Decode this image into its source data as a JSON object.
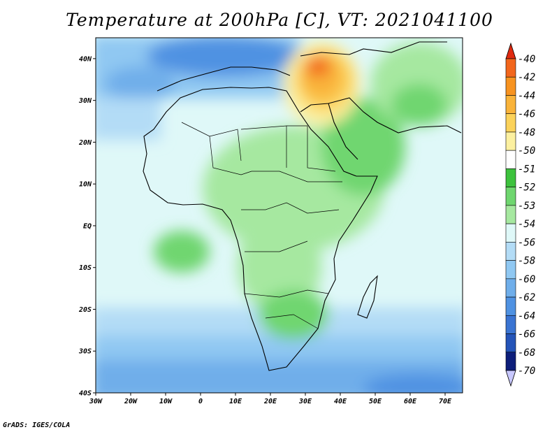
{
  "title": "Temperature at 200hPa [C], VT: 2021041100",
  "credit": "GrADS: IGES/COLA",
  "map": {
    "lon_ticks": [
      "30W",
      "20W",
      "10W",
      "0",
      "10E",
      "20E",
      "30E",
      "40E",
      "50E",
      "60E",
      "70E"
    ],
    "lat_ticks": [
      "40N",
      "30N",
      "20N",
      "10N",
      "EQ",
      "10S",
      "20S",
      "30S",
      "40S"
    ],
    "lon_range": [
      -30,
      75
    ],
    "lat_range": [
      -40,
      45
    ]
  },
  "colorbar": {
    "labels": [
      "-40",
      "-42",
      "-44",
      "-46",
      "-48",
      "-50",
      "-51",
      "-52",
      "-53",
      "-54",
      "-56",
      "-58",
      "-60",
      "-62",
      "-64",
      "-66",
      "-68",
      "-70"
    ],
    "colors": [
      "#e02a10",
      "#f2661c",
      "#f79320",
      "#f9b33a",
      "#fbd25a",
      "#fcf0a0",
      "#ffffff",
      "#3dc23d",
      "#6fd66f",
      "#a6e8a0",
      "#dff8f8",
      "#b3dcf6",
      "#90c8f2",
      "#6faeea",
      "#4f92e2",
      "#3a74d2",
      "#2454b8",
      "#0d1e7a",
      "#c8c8ff"
    ]
  }
}
